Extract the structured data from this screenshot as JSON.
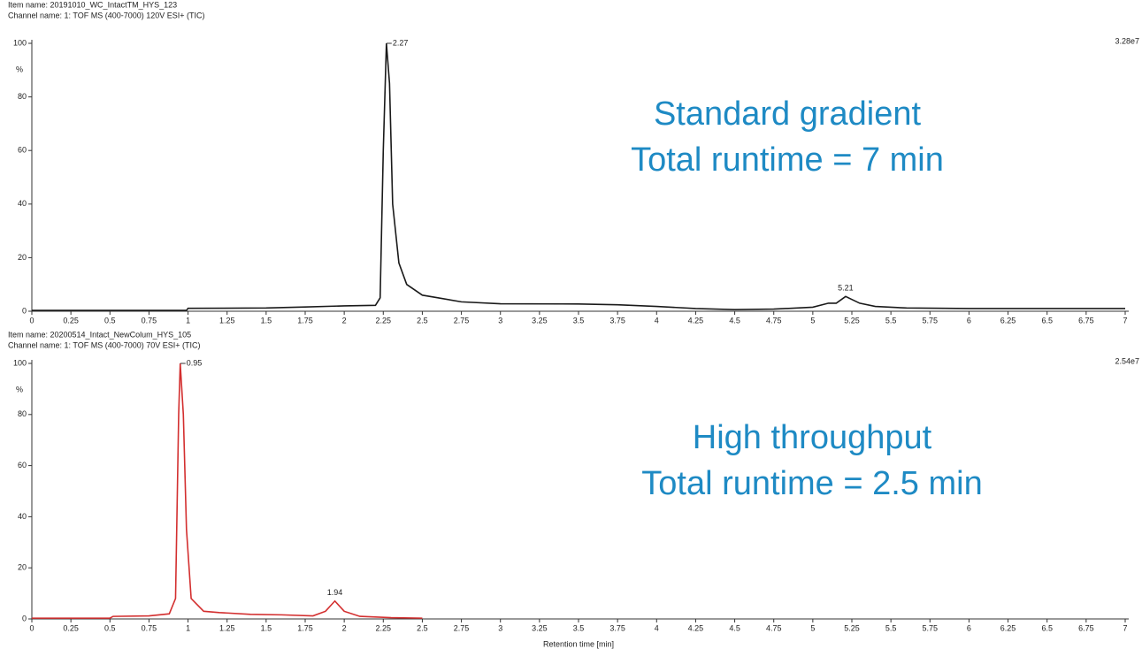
{
  "chart_data": [
    {
      "type": "line",
      "item_name": "Item name: 20191010_WC_IntactTM_HYS_123",
      "channel_name": "Channel name: 1: TOF MS (400-7000) 120V ESI+ (TIC)",
      "scale_label": "3.28e7",
      "y_label": "%",
      "annotations": [
        "Standard gradient",
        "Total runtime = 7 min"
      ],
      "annotation_color": "#1e8ac4",
      "x": [
        0,
        0.99,
        1.0,
        1.5,
        1.75,
        2.0,
        2.2,
        2.23,
        2.25,
        2.27,
        2.29,
        2.31,
        2.35,
        2.4,
        2.5,
        2.6,
        2.75,
        3.0,
        3.5,
        3.75,
        4.0,
        4.25,
        4.5,
        4.75,
        5.0,
        5.1,
        5.15,
        5.21,
        5.3,
        5.4,
        5.6,
        6.0,
        7.0
      ],
      "series": [
        {
          "color": "#1a1a1a",
          "values": [
            0.3,
            0.3,
            1.1,
            1.2,
            1.6,
            2.0,
            2.2,
            5,
            60,
            100,
            85,
            40,
            18,
            10,
            6,
            5,
            3.5,
            2.8,
            2.7,
            2.4,
            1.8,
            1.0,
            0.6,
            0.8,
            1.5,
            3,
            3,
            5.5,
            3,
            1.8,
            1.2,
            1.0,
            1.0
          ]
        }
      ],
      "peaks": [
        {
          "x": 2.27,
          "y": 100
        },
        {
          "x": 5.21,
          "y": 5.5
        }
      ],
      "xlim": [
        0,
        7
      ],
      "ylim": [
        0,
        100
      ],
      "xticks": [
        0,
        0.25,
        0.5,
        0.75,
        1,
        1.25,
        1.5,
        1.75,
        2,
        2.25,
        2.5,
        2.75,
        3,
        3.25,
        3.5,
        3.75,
        4,
        4.25,
        4.5,
        4.75,
        5,
        5.25,
        5.5,
        5.75,
        6,
        6.25,
        6.5,
        6.75,
        7
      ],
      "yticks": [
        0,
        20,
        40,
        60,
        80,
        100
      ]
    },
    {
      "type": "line",
      "item_name": "Item name: 20200514_Intact_NewColum_HYS_105",
      "channel_name": "Channel name: 1: TOF MS (400-7000) 70V ESI+ (TIC)",
      "scale_label": "2.54e7",
      "y_label": "%",
      "x_label": "Retention time [min]",
      "annotations": [
        "High throughput",
        "Total runtime = 2.5 min"
      ],
      "annotation_color": "#1e8ac4",
      "x": [
        0,
        0.5,
        0.52,
        0.75,
        0.88,
        0.92,
        0.94,
        0.95,
        0.97,
        0.99,
        1.02,
        1.1,
        1.2,
        1.4,
        1.6,
        1.8,
        1.88,
        1.94,
        2.0,
        2.1,
        2.3,
        2.5
      ],
      "series": [
        {
          "color": "#d32f2f",
          "values": [
            0.3,
            0.3,
            1.0,
            1.2,
            2,
            8,
            80,
            100,
            80,
            35,
            8,
            3,
            2.5,
            1.8,
            1.6,
            1.2,
            3,
            7,
            3,
            1,
            0.5,
            0.3
          ]
        }
      ],
      "peaks": [
        {
          "x": 0.95,
          "y": 100
        },
        {
          "x": 1.94,
          "y": 7
        }
      ],
      "xlim": [
        0,
        7
      ],
      "ylim": [
        0,
        100
      ],
      "xticks": [
        0,
        0.25,
        0.5,
        0.75,
        1,
        1.25,
        1.5,
        1.75,
        2,
        2.25,
        2.5,
        2.75,
        3,
        3.25,
        3.5,
        3.75,
        4,
        4.25,
        4.5,
        4.75,
        5,
        5.25,
        5.5,
        5.75,
        6,
        6.25,
        6.5,
        6.75,
        7
      ],
      "yticks": [
        0,
        20,
        40,
        60,
        80,
        100
      ]
    }
  ]
}
